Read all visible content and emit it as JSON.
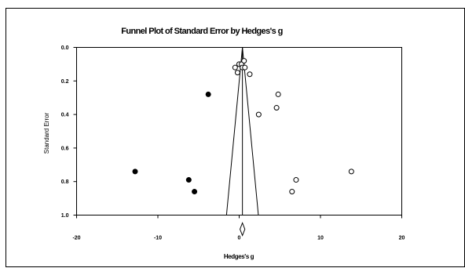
{
  "chart_data": {
    "type": "scatter",
    "title": "Funnel Plot of Standard Error by Hedges's g",
    "xlabel": "Hedges's g",
    "ylabel": "Standard Error",
    "xlim": [
      -20,
      20
    ],
    "ylim": [
      1.0,
      0.0
    ],
    "y_inverted": true,
    "x_ticks": [
      "-20",
      "-10",
      "0",
      "10",
      "20"
    ],
    "y_ticks": [
      "0.0",
      "0.2",
      "0.4",
      "0.6",
      "0.8",
      "1.0"
    ],
    "grid": false,
    "legend": "none",
    "pooled_estimate": 0.4,
    "funnel_z": 1.96,
    "series": [
      {
        "marker": "open-circle",
        "points": [
          {
            "x": -0.5,
            "y": 0.12
          },
          {
            "x": 0.0,
            "y": 0.1
          },
          {
            "x": 0.3,
            "y": 0.1
          },
          {
            "x": 0.6,
            "y": 0.08
          },
          {
            "x": 0.4,
            "y": 0.12
          },
          {
            "x": 0.7,
            "y": 0.12
          },
          {
            "x": -0.2,
            "y": 0.15
          },
          {
            "x": 1.3,
            "y": 0.16
          },
          {
            "x": 4.8,
            "y": 0.28
          },
          {
            "x": 4.6,
            "y": 0.36
          },
          {
            "x": 2.4,
            "y": 0.4
          },
          {
            "x": 13.8,
            "y": 0.74
          },
          {
            "x": 7.0,
            "y": 0.79
          },
          {
            "x": 6.5,
            "y": 0.86
          }
        ]
      },
      {
        "marker": "filled-circle",
        "points": [
          {
            "x": -3.8,
            "y": 0.28
          },
          {
            "x": -12.8,
            "y": 0.74
          },
          {
            "x": -6.2,
            "y": 0.79
          },
          {
            "x": -5.5,
            "y": 0.86
          }
        ]
      }
    ],
    "summary_diamond": {
      "x": 0.4,
      "low": 0.1,
      "high": 0.7
    }
  },
  "colors": {
    "axis": "#000000",
    "background": "#ffffff",
    "marker": "#000000"
  }
}
